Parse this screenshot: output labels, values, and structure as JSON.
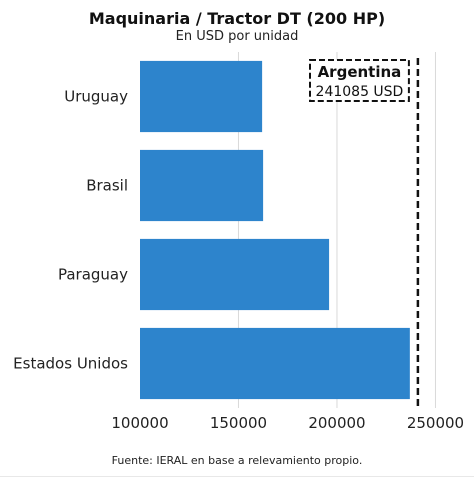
{
  "chart_data": {
    "type": "bar",
    "orientation": "horizontal",
    "title": "Maquinaria / Tractor DT (200 HP)",
    "subtitle": "En USD por unidad",
    "categories": [
      "Uruguay",
      "Brasil",
      "Paraguay",
      "Estados Unidos"
    ],
    "values": [
      162000,
      162500,
      196000,
      237000
    ],
    "xlim": [
      100000,
      265000
    ],
    "xticks": [
      100000,
      150000,
      200000,
      250000
    ],
    "grid": true,
    "bar_color": "#2d84cc",
    "reference_line": {
      "value": 241085,
      "label": "Argentina",
      "value_label": "241085 USD",
      "style": "dashed"
    },
    "source": "Fuente: IERAL en base a relevamiento propio."
  }
}
